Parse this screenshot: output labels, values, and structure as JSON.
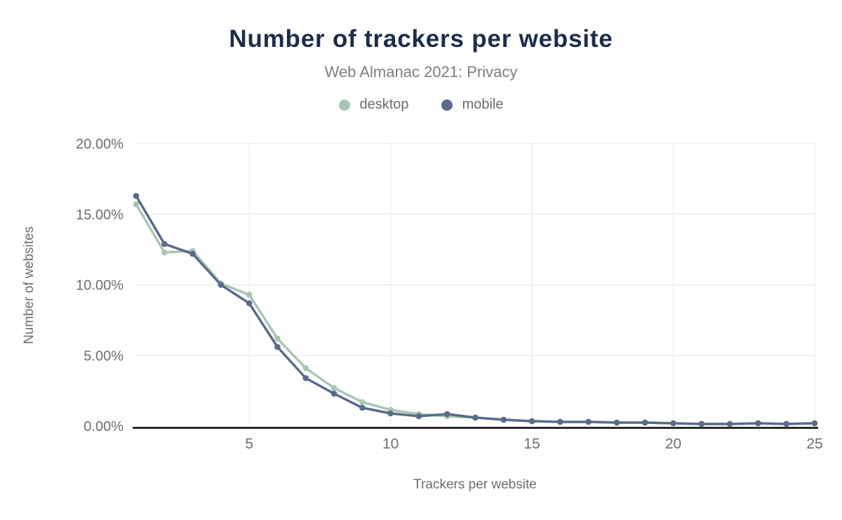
{
  "header": {
    "title": "Number of trackers per website",
    "subtitle": "Web Almanac 2021: Privacy"
  },
  "chart_data": {
    "type": "line",
    "title": "Number of trackers per website",
    "subtitle": "Web Almanac 2021: Privacy",
    "xlabel": "Trackers per website",
    "ylabel": "Number of websites",
    "x": [
      1,
      2,
      3,
      4,
      5,
      6,
      7,
      8,
      9,
      10,
      11,
      12,
      13,
      14,
      15,
      16,
      17,
      18,
      19,
      20,
      21,
      22,
      23,
      24,
      25
    ],
    "series": [
      {
        "name": "desktop",
        "color": "#a8c7b2",
        "values": [
          15.7,
          12.3,
          12.4,
          10.1,
          9.3,
          6.2,
          4.1,
          2.7,
          1.7,
          1.15,
          0.85,
          0.7,
          0.6,
          0.45,
          0.35,
          0.3,
          0.3,
          0.25,
          0.25,
          0.2,
          0.15,
          0.15,
          0.2,
          0.15,
          0.2
        ]
      },
      {
        "name": "mobile",
        "color": "#5a6b8c",
        "values": [
          16.3,
          12.9,
          12.2,
          10.0,
          8.7,
          5.6,
          3.4,
          2.3,
          1.3,
          0.9,
          0.7,
          0.85,
          0.6,
          0.45,
          0.35,
          0.3,
          0.3,
          0.25,
          0.25,
          0.2,
          0.15,
          0.15,
          0.2,
          0.15,
          0.2
        ]
      }
    ],
    "xlim": [
      1,
      25
    ],
    "ylim": [
      0,
      20
    ],
    "xticks": [
      5,
      10,
      15,
      20,
      25
    ],
    "yticks": [
      {
        "value": 0,
        "label": "0.00%"
      },
      {
        "value": 5,
        "label": "5.00%"
      },
      {
        "value": 10,
        "label": "10.00%"
      },
      {
        "value": 15,
        "label": "15.00%"
      },
      {
        "value": 20,
        "label": "20.00%"
      }
    ],
    "grid": true,
    "legend_position": "top",
    "marker": "circle"
  },
  "colors": {
    "title": "#1c2e4a",
    "subtitle": "#7d7d7d",
    "axis_labels": "#6e6e6e",
    "gridline": "#e7e7e7",
    "axis_line": "#2b2b2b",
    "background": "#ffffff"
  }
}
